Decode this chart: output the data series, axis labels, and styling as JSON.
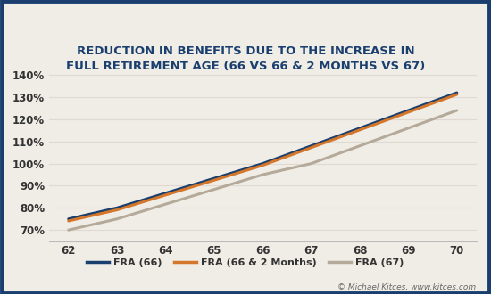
{
  "title_line1": "REDUCTION IN BENEFITS DUE TO THE INCREASE IN",
  "title_line2": "FULL RETIREMENT AGE (66 VS 66 & 2 MONTHS VS 67)",
  "x_values": [
    62,
    63,
    64,
    65,
    66,
    67,
    68,
    69,
    70
  ],
  "fra66_values": [
    0.75,
    0.8,
    0.8667,
    0.9333,
    1.0,
    1.08,
    1.16,
    1.24,
    1.32
  ],
  "fra66_2m_values": [
    0.741,
    0.791,
    0.858,
    0.925,
    0.992,
    1.072,
    1.152,
    1.232,
    1.312
  ],
  "fra67_values": [
    0.7,
    0.75,
    0.8167,
    0.8833,
    0.95,
    1.0,
    1.08,
    1.16,
    1.24
  ],
  "fra66_color": "#1a3f6f",
  "fra66_2m_color": "#d4772a",
  "fra67_color": "#b5aa9a",
  "background_color": "#f0ede6",
  "border_color": "#1a3f6f",
  "grid_color": "#dedad2",
  "title_color": "#1a3f6f",
  "ylim": [
    0.65,
    1.42
  ],
  "yticks": [
    0.7,
    0.8,
    0.9,
    1.0,
    1.1,
    1.2,
    1.3,
    1.4
  ],
  "xlim": [
    61.6,
    70.4
  ],
  "xticks": [
    62,
    63,
    64,
    65,
    66,
    67,
    68,
    69,
    70
  ],
  "legend_labels": [
    "FRA (66)",
    "FRA (66 & 2 Months)",
    "FRA (67)"
  ],
  "copyright_text": "© Michael Kitces, ",
  "copyright_url": "www.kitces.com",
  "line_width": 2.2
}
